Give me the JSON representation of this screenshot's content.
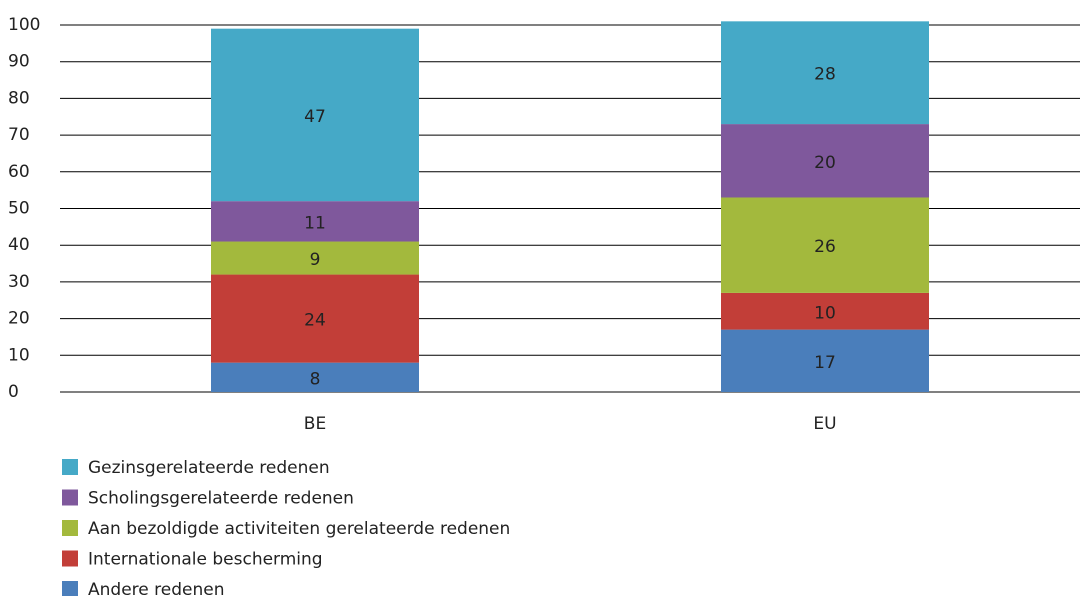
{
  "chart_data": {
    "type": "stacked_bar",
    "categories": [
      "BE",
      "EU"
    ],
    "series": [
      {
        "name": "Andere redenen",
        "color": "#4a7ebb",
        "values": [
          8,
          17
        ]
      },
      {
        "name": "Internationale bescherming",
        "color": "#c23e38",
        "values": [
          24,
          10
        ]
      },
      {
        "name": "Aan bezoldigde activiteiten gerelateerde redenen",
        "color": "#a3b93d",
        "values": [
          9,
          26
        ]
      },
      {
        "name": "Scholingsgerelateerde redenen",
        "color": "#7f589c",
        "values": [
          11,
          20
        ]
      },
      {
        "name": "Gezinsgerelateerde redenen",
        "color": "#45a9c7",
        "values": [
          47,
          28
        ]
      }
    ],
    "ylim": [
      0,
      100
    ],
    "yticks": [
      0,
      10,
      20,
      30,
      40,
      50,
      60,
      70,
      80,
      90,
      100
    ],
    "grid": true
  }
}
